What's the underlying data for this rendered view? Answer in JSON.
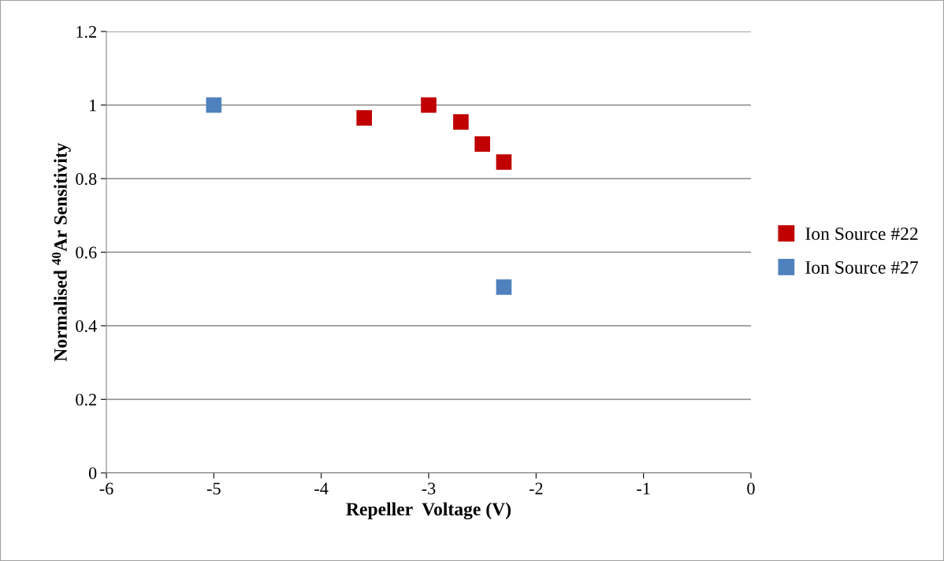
{
  "chart_data": {
    "type": "scatter",
    "xlabel": "Repeller  Voltage (V)",
    "ylabel": "Normalised $^{40}$Ar Sensitivity",
    "series": [
      {
        "name": "Ion Source #22",
        "color": "#c00000",
        "x": [
          -3.6,
          -3.0,
          -2.7,
          -2.5,
          -2.3
        ],
        "values": [
          0.965,
          1.0,
          0.954,
          0.894,
          0.845
        ]
      },
      {
        "name": "Ion Source #27",
        "color": "#4f81bd",
        "x": [
          -5.0,
          -2.3
        ],
        "values": [
          1.0,
          0.505
        ]
      }
    ],
    "xlim": [
      -6,
      0
    ],
    "xticks": [
      -6,
      -5,
      -4,
      -3,
      -2,
      -1,
      0
    ],
    "ylim": [
      0,
      1.2
    ],
    "yticks": [
      0,
      0.2,
      0.4,
      0.6,
      0.8,
      1,
      1.2
    ],
    "grid": "y",
    "legend": "right",
    "marker": "square"
  }
}
